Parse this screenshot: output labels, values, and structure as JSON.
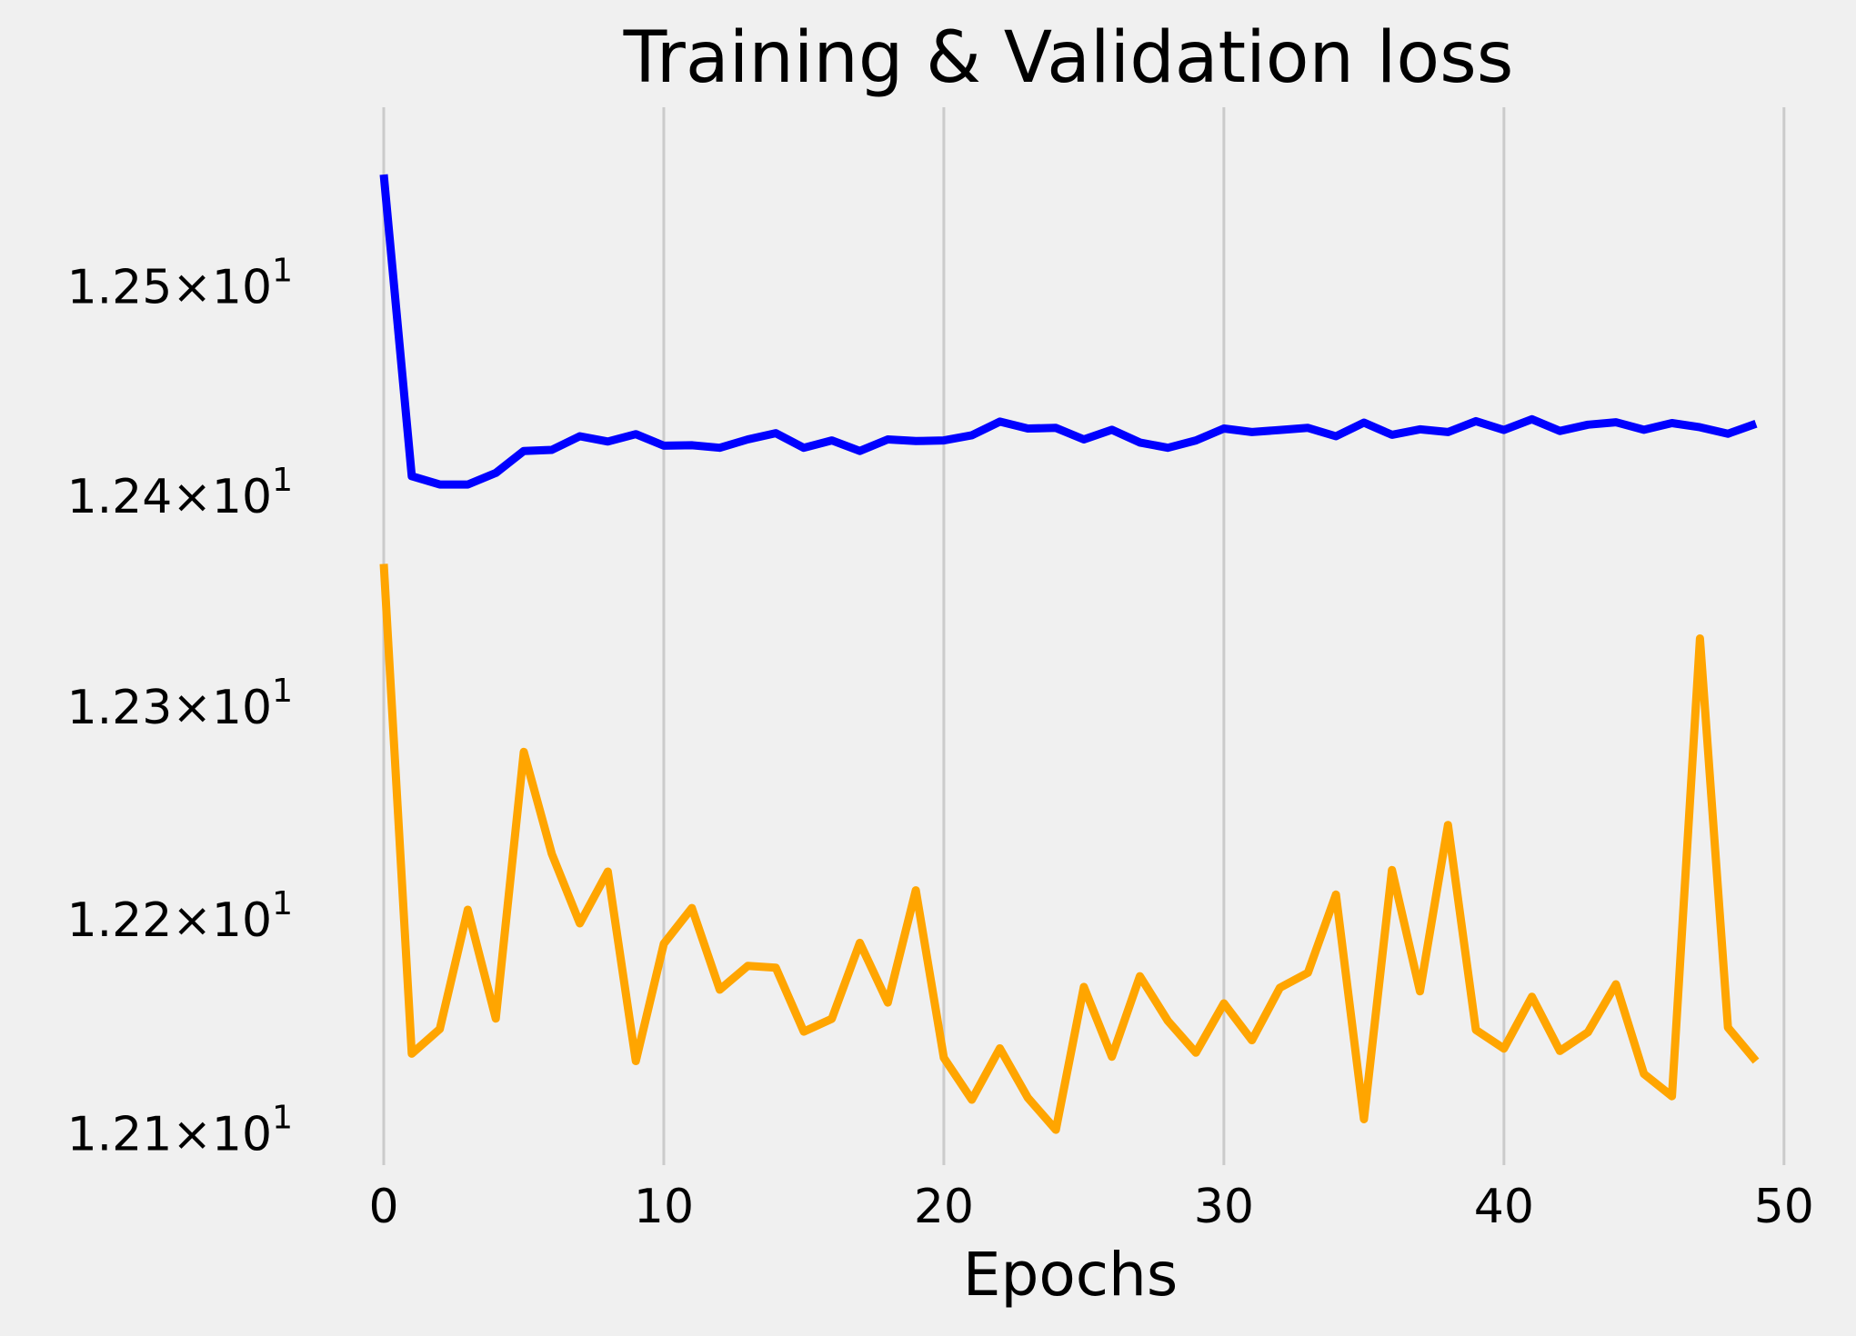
{
  "chart_data": {
    "type": "line",
    "title": "Training & Validation loss",
    "xlabel": "Epochs",
    "ylabel": "",
    "yscale": "log",
    "xlim": [
      -2.5,
      51.5
    ],
    "ylim": [
      12.0855,
      12.5865
    ],
    "grid": {
      "x": true,
      "y": false
    },
    "x_ticks": [
      0,
      10,
      20,
      30,
      40,
      50
    ],
    "x_tick_labels": [
      "0",
      "10",
      "20",
      "30",
      "40",
      "50"
    ],
    "y_ticks": [
      12.1,
      12.2,
      12.3,
      12.4,
      12.5
    ],
    "y_tick_labels": [
      {
        "mantissa": "1.21",
        "times": "×",
        "base": "10",
        "exponent": "1"
      },
      {
        "mantissa": "1.22",
        "times": "×",
        "base": "10",
        "exponent": "1"
      },
      {
        "mantissa": "1.23",
        "times": "×",
        "base": "10",
        "exponent": "1"
      },
      {
        "mantissa": "1.24",
        "times": "×",
        "base": "10",
        "exponent": "1"
      },
      {
        "mantissa": "1.25",
        "times": "×",
        "base": "10",
        "exponent": "1"
      }
    ],
    "x": [
      0,
      1,
      2,
      3,
      4,
      5,
      6,
      7,
      8,
      9,
      10,
      11,
      12,
      13,
      14,
      15,
      16,
      17,
      18,
      19,
      20,
      21,
      22,
      23,
      24,
      25,
      26,
      27,
      28,
      29,
      30,
      31,
      32,
      33,
      34,
      35,
      36,
      37,
      38,
      39,
      40,
      41,
      42,
      43,
      44,
      45,
      46,
      47,
      48,
      49
    ],
    "series": [
      {
        "color": "#0000ff",
        "values": [
          12.554,
          12.4095,
          12.4055,
          12.4055,
          12.411,
          12.4215,
          12.422,
          12.4285,
          12.426,
          12.4295,
          12.424,
          12.4242,
          12.423,
          12.427,
          12.43,
          12.423,
          12.4265,
          12.4215,
          12.427,
          12.4262,
          12.4265,
          12.429,
          12.4355,
          12.4322,
          12.4325,
          12.427,
          12.4316,
          12.4255,
          12.423,
          12.4265,
          12.4322,
          12.4305,
          12.4315,
          12.4325,
          12.4285,
          12.435,
          12.4292,
          12.4318,
          12.4305,
          12.4357,
          12.4315,
          12.4366,
          12.431,
          12.434,
          12.4352,
          12.4316,
          12.4348,
          12.4328,
          12.4297,
          12.4345
        ]
      },
      {
        "color": "#ffa500",
        "values": [
          12.3677,
          12.1373,
          12.1488,
          12.2046,
          12.1537,
          12.2788,
          12.2308,
          12.1982,
          12.2225,
          12.1339,
          12.1887,
          12.2054,
          12.1672,
          12.1783,
          12.1775,
          12.1476,
          12.1536,
          12.1891,
          12.1612,
          12.2137,
          12.1354,
          12.1159,
          12.1398,
          12.1168,
          12.1019,
          12.1685,
          12.1359,
          12.1735,
          12.1526,
          12.1378,
          12.1608,
          12.1436,
          12.1681,
          12.1751,
          12.2117,
          12.1068,
          12.2232,
          12.1664,
          12.2444,
          12.1484,
          12.1397,
          12.1639,
          12.1386,
          12.1473,
          12.1697,
          12.1279,
          12.1175,
          12.3324,
          12.1495,
          12.1339
        ]
      }
    ]
  }
}
